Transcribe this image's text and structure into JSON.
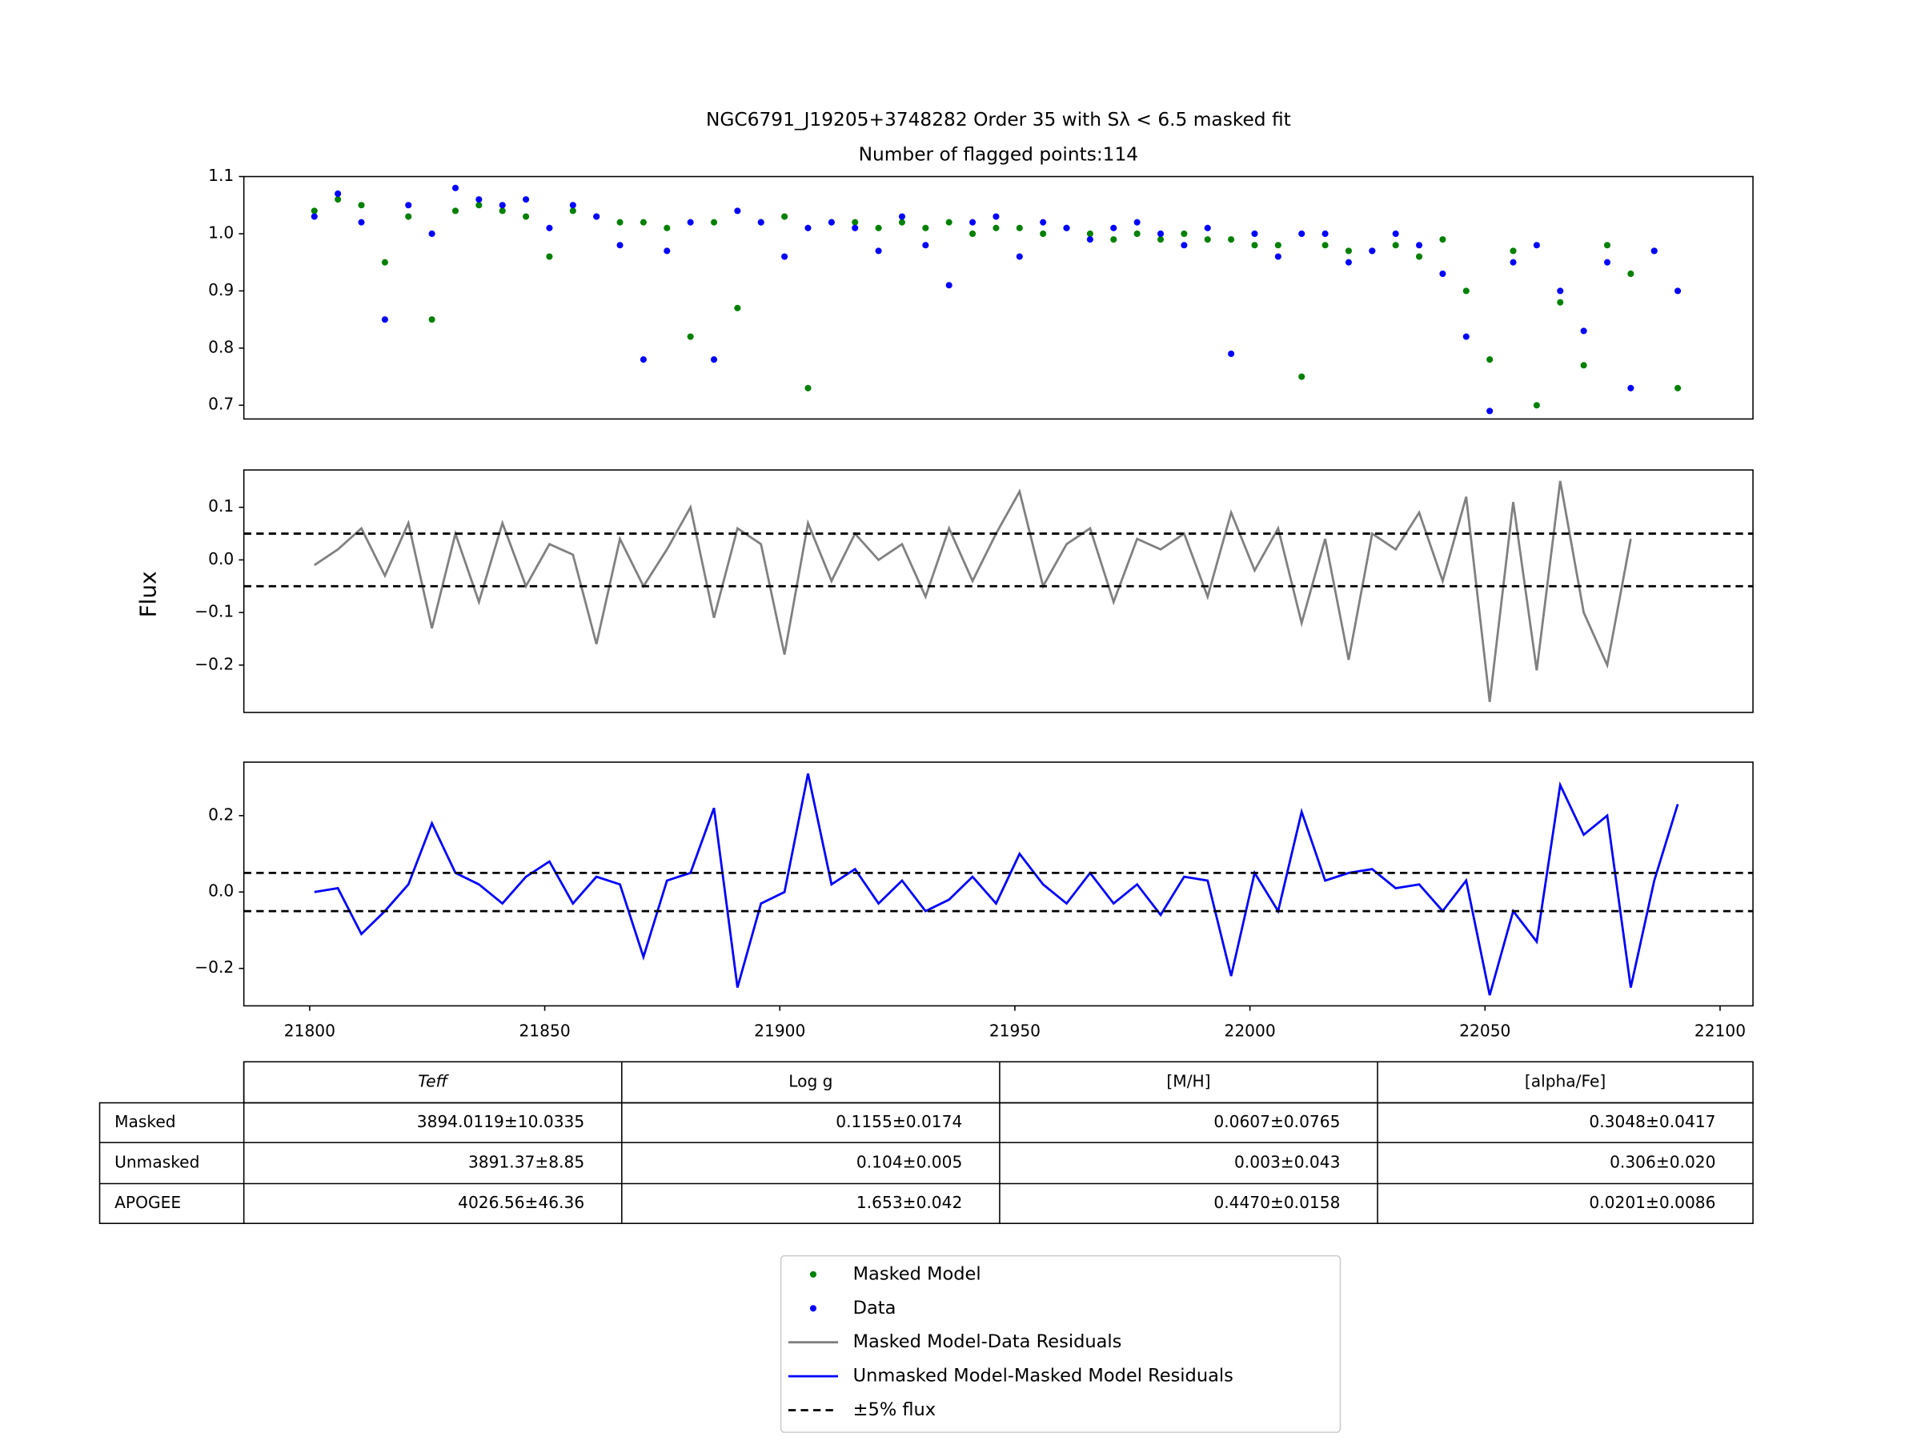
{
  "title": "NGC6791_J19205+3748282 Order 35 with Sλ < 6.5 masked fit",
  "subtitle": "Number of flagged points:114",
  "ylabel": "Flux",
  "chart_data": [
    {
      "type": "scatter",
      "x": [
        21801,
        21806,
        21811,
        21816,
        21821,
        21826,
        21831,
        21836,
        21841,
        21846,
        21851,
        21856,
        21861,
        21866,
        21871,
        21876,
        21881,
        21886,
        21891,
        21896,
        21901,
        21906,
        21911,
        21916,
        21921,
        21926,
        21931,
        21936,
        21941,
        21946,
        21951,
        21956,
        21961,
        21966,
        21971,
        21976,
        21981,
        21986,
        21991,
        21996,
        22001,
        22006,
        22011,
        22016,
        22021,
        22026,
        22031,
        22036,
        22041,
        22046,
        22051,
        22056,
        22061,
        22066,
        22071,
        22076,
        22081,
        22086,
        22091
      ],
      "series": [
        {
          "name": "Masked Model",
          "color": "#008000",
          "values": [
            1.04,
            1.06,
            1.05,
            0.95,
            1.03,
            0.85,
            1.04,
            1.05,
            1.04,
            1.03,
            0.96,
            1.04,
            1.03,
            1.02,
            1.02,
            1.01,
            0.82,
            1.02,
            0.87,
            1.02,
            1.03,
            0.73,
            1.02,
            1.02,
            1.01,
            1.02,
            1.01,
            1.02,
            1.0,
            1.01,
            1.01,
            1.0,
            1.01,
            1.0,
            0.99,
            1.0,
            0.99,
            1.0,
            0.99,
            0.99,
            0.98,
            0.98,
            0.75,
            0.98,
            0.97,
            0.97,
            0.98,
            0.96,
            0.99,
            0.9,
            0.78,
            0.97,
            0.7,
            0.88,
            0.77,
            0.98,
            0.93,
            0.97,
            0.73
          ]
        },
        {
          "name": "Data",
          "color": "#0000ff",
          "values": [
            1.03,
            1.07,
            1.02,
            0.85,
            1.05,
            1.0,
            1.08,
            1.06,
            1.05,
            1.06,
            1.01,
            1.05,
            1.03,
            0.98,
            0.78,
            0.97,
            1.02,
            0.78,
            1.04,
            1.02,
            0.96,
            1.01,
            1.02,
            1.01,
            0.97,
            1.03,
            0.98,
            0.91,
            1.02,
            1.03,
            0.96,
            1.02,
            1.01,
            0.99,
            1.01,
            1.02,
            1.0,
            0.98,
            1.01,
            0.79,
            1.0,
            0.96,
            1.0,
            1.0,
            0.95,
            0.97,
            1.0,
            0.98,
            0.93,
            0.82,
            0.69,
            0.95,
            0.98,
            0.9,
            0.83,
            0.95,
            0.73,
            0.97,
            0.9
          ]
        }
      ],
      "xlim": [
        21786,
        22107
      ],
      "ylim": [
        0.676,
        1.1
      ],
      "yticks": [
        0.7,
        0.8,
        0.9,
        {
          "value": 1,
          "label": "1.0"
        },
        1.1
      ]
    },
    {
      "type": "line",
      "x": [
        21801,
        21806,
        21811,
        21816,
        21821,
        21826,
        21831,
        21836,
        21841,
        21846,
        21851,
        21856,
        21861,
        21866,
        21871,
        21876,
        21881,
        21886,
        21891,
        21896,
        21901,
        21906,
        21911,
        21916,
        21921,
        21926,
        21931,
        21936,
        21941,
        21946,
        21951,
        21956,
        21961,
        21966,
        21971,
        21976,
        21981,
        21986,
        21991,
        21996,
        22001,
        22006,
        22011,
        22016,
        22021,
        22026,
        22031,
        22036,
        22041,
        22046,
        22051,
        22056,
        22061,
        22066,
        22071,
        22076,
        22081
      ],
      "series": [
        {
          "name": "Masked Model-Data Residuals",
          "color": "#808080",
          "values": [
            -0.01,
            0.02,
            0.06,
            -0.03,
            0.07,
            -0.13,
            0.05,
            -0.08,
            0.07,
            -0.05,
            0.03,
            0.01,
            -0.16,
            0.04,
            -0.05,
            0.02,
            0.1,
            -0.11,
            0.06,
            0.03,
            -0.18,
            0.07,
            -0.04,
            0.05,
            0.0,
            0.03,
            -0.07,
            0.06,
            -0.04,
            0.05,
            0.13,
            -0.05,
            0.03,
            0.06,
            -0.08,
            0.04,
            0.02,
            0.05,
            -0.07,
            0.09,
            -0.02,
            0.06,
            -0.12,
            0.04,
            -0.19,
            0.05,
            0.02,
            0.09,
            -0.04,
            0.12,
            -0.27,
            0.11,
            -0.21,
            0.15,
            -0.1,
            -0.2,
            0.04
          ]
        }
      ],
      "reference_lines": {
        "name": "±5% flux",
        "color": "#000000",
        "values": [
          0.05,
          -0.05
        ]
      },
      "xlim": [
        21786,
        22107
      ],
      "ylim": [
        -0.29,
        0.171
      ],
      "yticks": [
        {
          "value": -0.2,
          "label": "−0.2"
        },
        {
          "value": -0.1,
          "label": "−0.1"
        },
        {
          "value": 0,
          "label": "0.0"
        },
        0.1
      ]
    },
    {
      "type": "line",
      "x": [
        21801,
        21806,
        21811,
        21816,
        21821,
        21826,
        21831,
        21836,
        21841,
        21846,
        21851,
        21856,
        21861,
        21866,
        21871,
        21876,
        21881,
        21886,
        21891,
        21896,
        21901,
        21906,
        21911,
        21916,
        21921,
        21926,
        21931,
        21936,
        21941,
        21946,
        21951,
        21956,
        21961,
        21966,
        21971,
        21976,
        21981,
        21986,
        21991,
        21996,
        22001,
        22006,
        22011,
        22016,
        22021,
        22026,
        22031,
        22036,
        22041,
        22046,
        22051,
        22056,
        22061,
        22066,
        22071,
        22076,
        22081,
        22086,
        22091
      ],
      "series": [
        {
          "name": "Unmasked Model-Masked Model Residuals",
          "color": "#0000ff",
          "values": [
            0.0,
            0.01,
            -0.11,
            -0.05,
            0.02,
            0.18,
            0.05,
            0.02,
            -0.03,
            0.04,
            0.08,
            -0.03,
            0.04,
            0.02,
            -0.17,
            0.03,
            0.05,
            0.22,
            -0.25,
            -0.03,
            0.0,
            0.31,
            0.02,
            0.06,
            -0.03,
            0.03,
            -0.05,
            -0.02,
            0.04,
            -0.03,
            0.1,
            0.02,
            -0.03,
            0.05,
            -0.03,
            0.02,
            -0.06,
            0.04,
            0.03,
            -0.22,
            0.05,
            -0.05,
            0.21,
            0.03,
            0.05,
            0.06,
            0.01,
            0.02,
            -0.05,
            0.03,
            -0.27,
            -0.05,
            -0.13,
            0.28,
            0.15,
            0.2,
            -0.25,
            0.03,
            0.23
          ]
        }
      ],
      "reference_lines": {
        "color": "#000000",
        "values": [
          0.05,
          -0.05
        ]
      },
      "xlim": [
        21786,
        22107
      ],
      "ylim": [
        -0.298,
        0.34
      ],
      "yticks": [
        {
          "value": -0.2,
          "label": "−0.2"
        },
        {
          "value": 0,
          "label": "0.0"
        },
        0.2
      ],
      "xticks": [
        21800,
        21850,
        21900,
        21950,
        22000,
        22050,
        22100
      ]
    }
  ],
  "table": {
    "columns": [
      "Teff",
      "Log g",
      "[M/H]",
      "[alpha/Fe]"
    ],
    "rows": [
      {
        "label": "Masked",
        "cells": [
          "3894.0119±10.0335",
          "0.1155±0.0174",
          "0.0607±0.0765",
          "0.3048±0.0417"
        ]
      },
      {
        "label": "Unmasked",
        "cells": [
          "3891.37±8.85",
          "0.104±0.005",
          "0.003±0.043",
          "0.306±0.020"
        ]
      },
      {
        "label": "APOGEE",
        "cells": [
          "4026.56±46.36",
          "1.653±0.042",
          "0.4470±0.0158",
          "0.0201±0.0086"
        ]
      }
    ]
  }
}
